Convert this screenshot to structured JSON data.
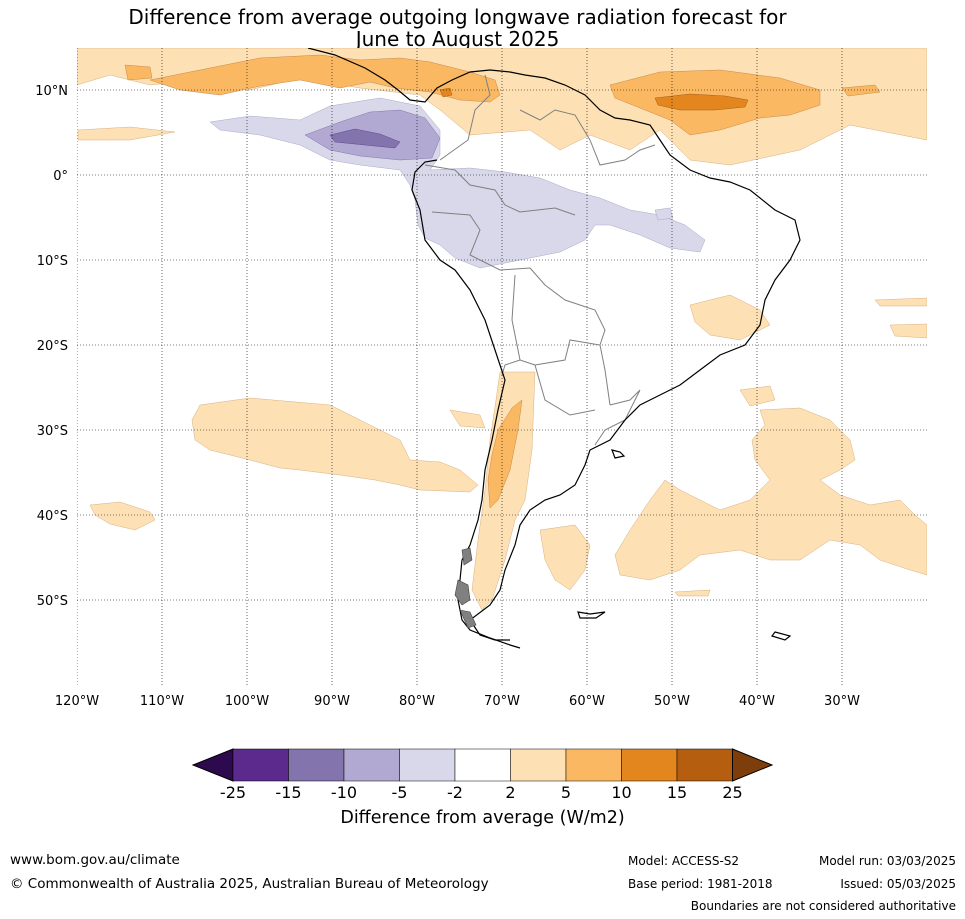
{
  "title": {
    "line1": "Difference from average outgoing longwave radiation forecast for",
    "line2": "June to August 2025"
  },
  "axes": {
    "lat_ticks": [
      "10°N",
      "0°",
      "10°S",
      "20°S",
      "30°S",
      "40°S",
      "50°S"
    ],
    "lon_ticks": [
      "120°W",
      "110°W",
      "100°W",
      "90°W",
      "80°W",
      "70°W",
      "60°W",
      "50°W",
      "40°W",
      "30°W"
    ]
  },
  "colorbar": {
    "title": "Difference from average (W/m2)",
    "ticks": [
      "-25",
      "-15",
      "-10",
      "-5",
      "-2",
      "2",
      "5",
      "10",
      "15",
      "25"
    ],
    "colors": [
      "#2d0a4e",
      "#5c2a8c",
      "#8474ad",
      "#b1a9d2",
      "#d8d8ea",
      "#ffffff",
      "#fde0b4",
      "#fbb863",
      "#e4861e",
      "#b55e0f",
      "#7e3e0c"
    ]
  },
  "footer": {
    "website": "www.bom.gov.au/climate",
    "copyright": "© Commonwealth of Australia 2025, Australian Bureau of Meteorology",
    "model": "Model: ACCESS-S2",
    "base_period": "Base period: 1981-2018",
    "model_run": "Model run: 03/03/2025",
    "issued": "Issued: 05/03/2025",
    "disclaimer": "Boundaries are not considered authoritative"
  }
}
